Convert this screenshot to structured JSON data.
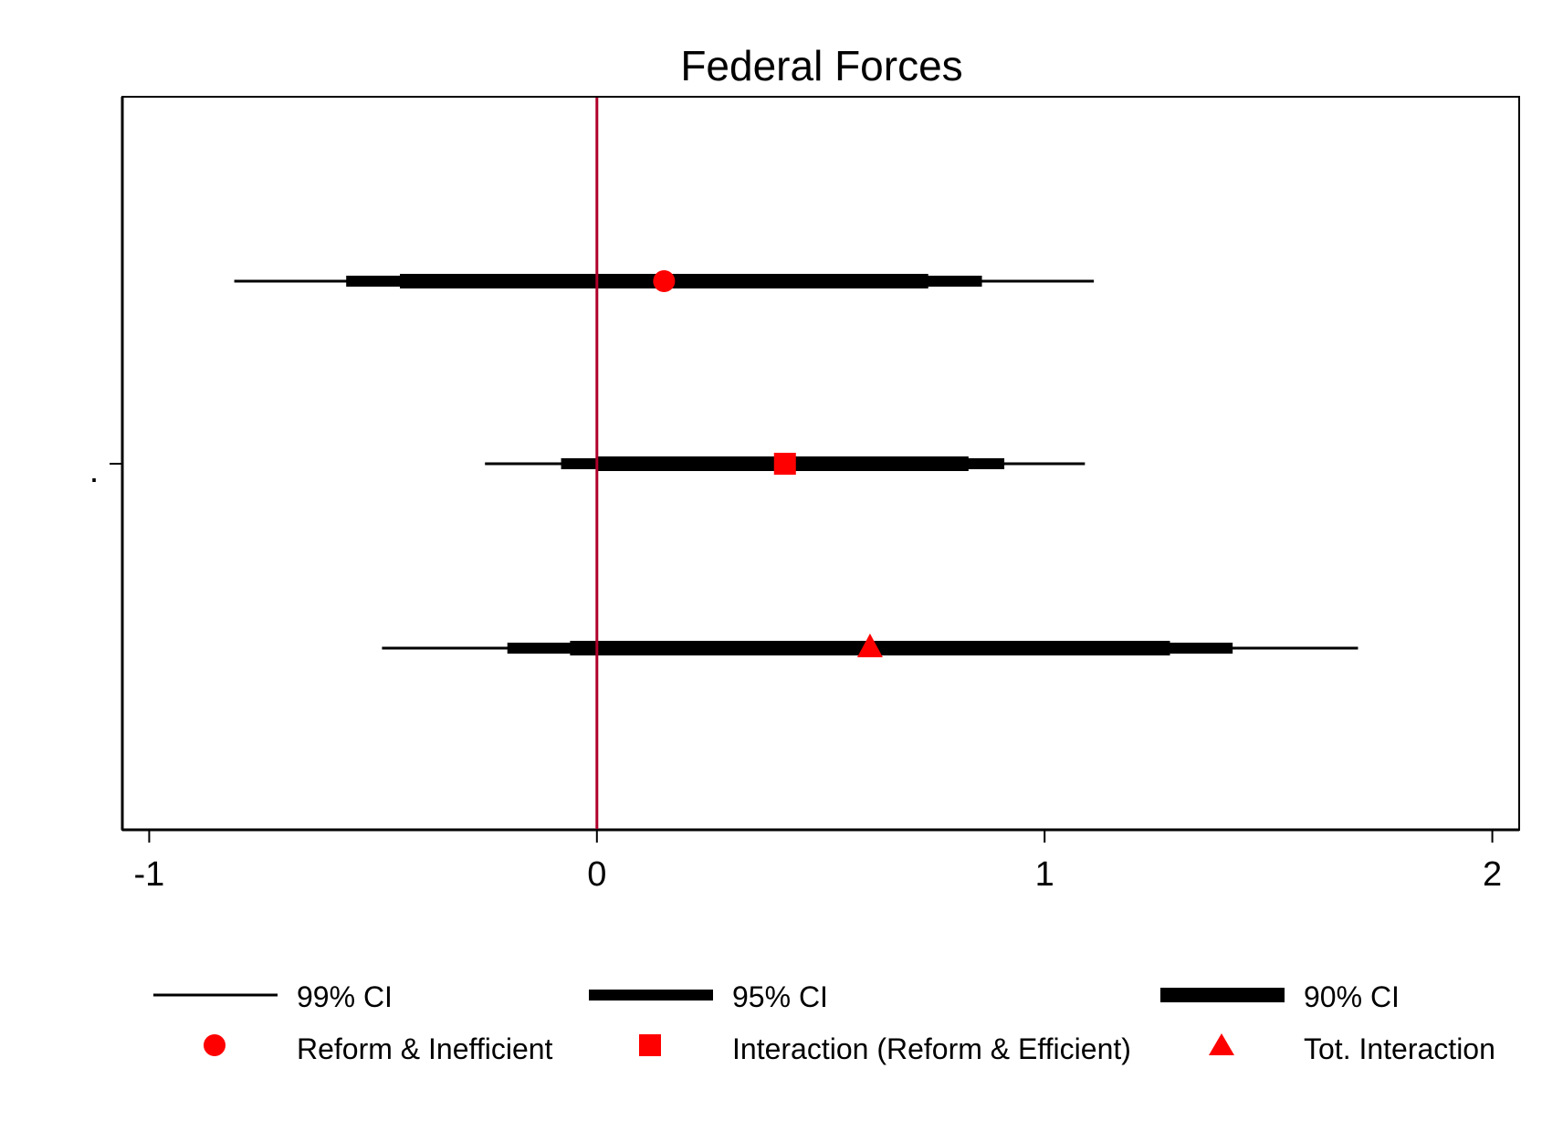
{
  "chart_data": {
    "type": "coefficient-plot",
    "title": "Federal Forces",
    "xlabel": "",
    "ylabel": "",
    "y_tick_labels": [
      "."
    ],
    "xlim": [
      -1.06,
      2.06
    ],
    "x_ticks": [
      -1,
      0,
      1,
      2
    ],
    "x_tick_labels": [
      "-1",
      "0",
      "1",
      "2"
    ],
    "grid": false,
    "reference_line": {
      "x": 0,
      "color": "#b0002a"
    },
    "legend_position": "bottom",
    "series": [
      {
        "name": "Reform & Inefficient",
        "marker": "circle",
        "color": "#ff0000",
        "estimate": 0.15,
        "ci90": [
          -0.44,
          0.74
        ],
        "ci95": [
          -0.56,
          0.86
        ],
        "ci99": [
          -0.81,
          1.11
        ]
      },
      {
        "name": "Interaction (Reform & Efficient)",
        "marker": "square",
        "color": "#ff0000",
        "estimate": 0.42,
        "ci90": [
          0.0,
          0.83
        ],
        "ci95": [
          -0.08,
          0.91
        ],
        "ci99": [
          -0.25,
          1.09
        ]
      },
      {
        "name": "Tot. Interaction",
        "marker": "triangle",
        "color": "#ff0000",
        "estimate": 0.61,
        "ci90": [
          -0.06,
          1.28
        ],
        "ci95": [
          -0.2,
          1.42
        ],
        "ci99": [
          -0.48,
          1.7
        ]
      }
    ],
    "legend": {
      "lines": [
        {
          "label": "99% CI",
          "weight": "thin"
        },
        {
          "label": "95% CI",
          "weight": "medium"
        },
        {
          "label": "90% CI",
          "weight": "thick"
        }
      ],
      "markers": [
        {
          "label": "Reform & Inefficient",
          "marker": "circle"
        },
        {
          "label": "Interaction (Reform & Efficient)",
          "marker": "square"
        },
        {
          "label": "Tot. Interaction",
          "marker": "triangle"
        }
      ]
    }
  }
}
